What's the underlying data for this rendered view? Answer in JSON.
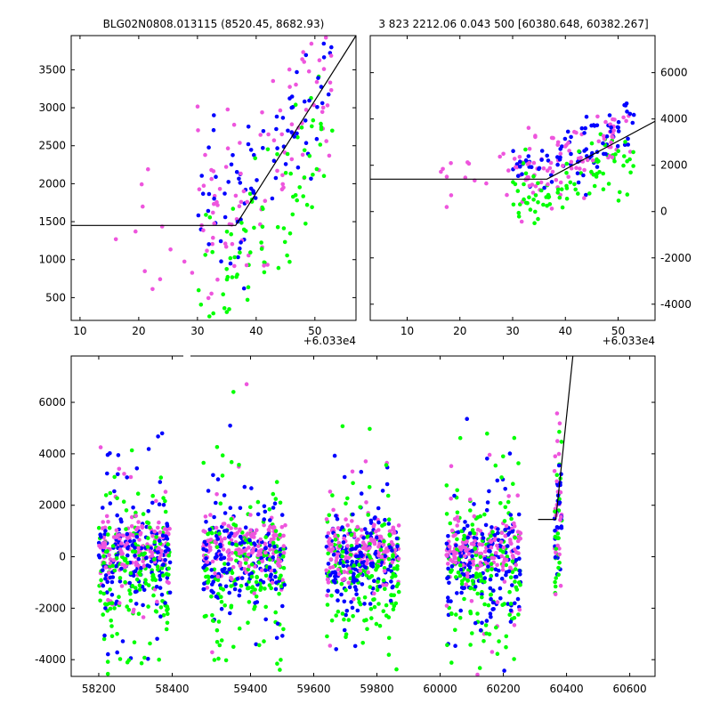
{
  "titles": {
    "left": "BLG02N0808.013115 (8520.45, 8682.93)",
    "right": "3 823 2212.06 0.043 500 [60380.648, 60382.267]"
  },
  "colors": {
    "blue": "#0000ff",
    "green": "#00ff00",
    "magenta": "#ee55dd",
    "line": "#000000"
  },
  "chart_data": [
    {
      "id": "top-left",
      "type": "scatter",
      "title": "BLG02N0808.013115 (8520.45, 8682.93)",
      "xlim": [
        8.5,
        57
      ],
      "ylim": [
        200,
        3950
      ],
      "xticks": [
        10,
        20,
        30,
        40,
        50
      ],
      "yticks": [
        500,
        1000,
        1500,
        2000,
        2500,
        3000,
        3500
      ],
      "offset_label": "+6.033e4",
      "yaxis_side": "left",
      "model_line": [
        [
          8.5,
          1450
        ],
        [
          36.5,
          1450
        ],
        [
          57,
          3950
        ]
      ]
    },
    {
      "id": "top-right",
      "type": "scatter",
      "title": "3 823 2212.06 0.043 500 [60380.648, 60382.267]",
      "xlim": [
        3,
        57
      ],
      "ylim": [
        -4700,
        7600
      ],
      "xticks": [
        10,
        20,
        30,
        40,
        50
      ],
      "yticks": [
        -4000,
        -2000,
        0,
        2000,
        4000,
        6000
      ],
      "offset_label": "+6.033e4",
      "yaxis_side": "right",
      "model_line": [
        [
          3,
          1400
        ],
        [
          36.5,
          1400
        ],
        [
          57,
          3900
        ]
      ]
    },
    {
      "id": "bottom",
      "type": "scatter",
      "title": "",
      "xlim": [
        58125,
        60680
      ],
      "ylim": [
        -4650,
        7800
      ],
      "xticks": [
        58200,
        58400,
        59400,
        59600,
        59800,
        60000,
        60200,
        60400,
        60600
      ],
      "tick_labels": [
        "58200",
        "58400",
        "59400",
        "59600",
        "59800",
        "60000",
        "60200",
        "60400",
        "60600"
      ],
      "yticks": [
        -4000,
        -2000,
        0,
        2000,
        4000,
        6000
      ],
      "broken_axis_gap": [
        58440,
        59210
      ],
      "seasons": [
        [
          58200,
          58395
        ],
        [
          59250,
          59510
        ],
        [
          59640,
          59870
        ],
        [
          60020,
          60255
        ],
        [
          60362,
          60385
        ]
      ],
      "model_line": [
        [
          60310,
          1450
        ],
        [
          60366,
          1450
        ],
        [
          60420,
          7800
        ]
      ]
    }
  ]
}
